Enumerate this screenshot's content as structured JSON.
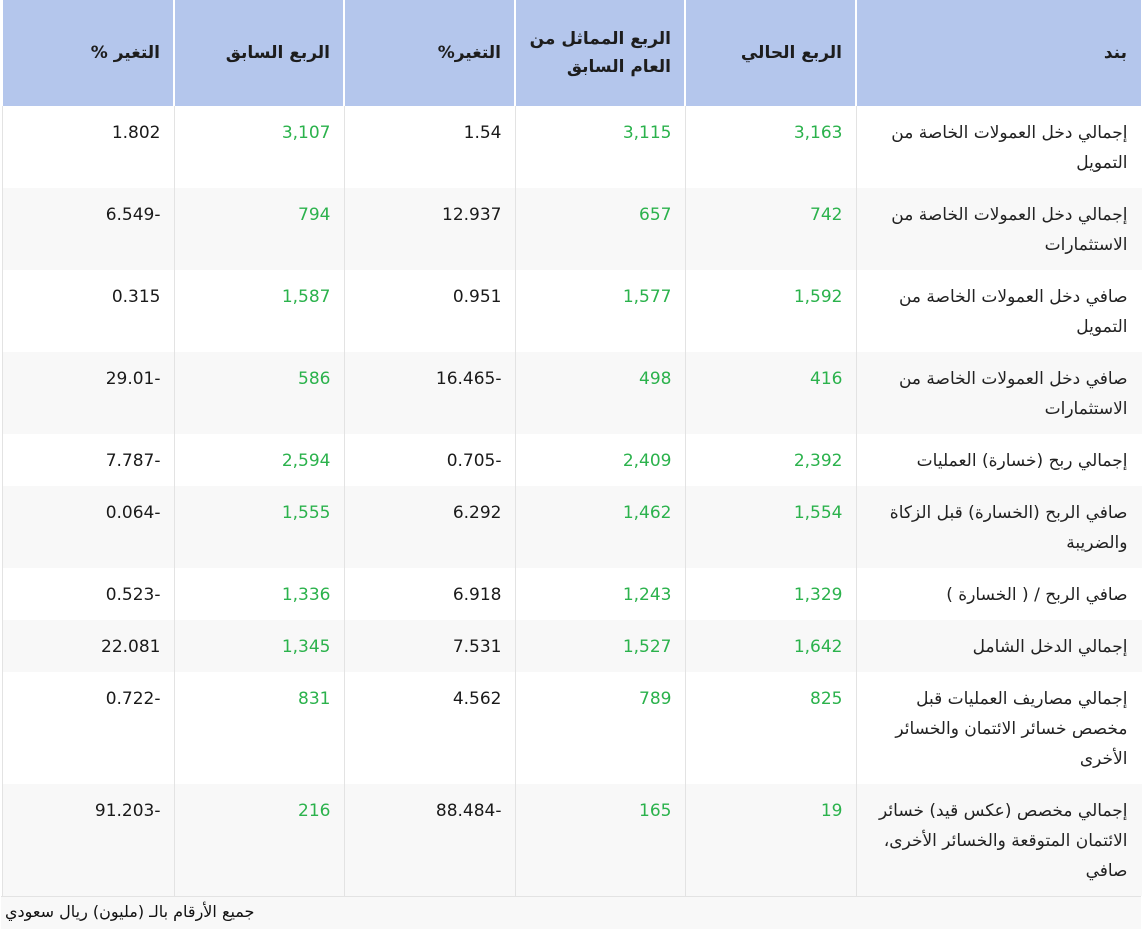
{
  "headers": {
    "item": "بند",
    "current_quarter": "الربع الحالي",
    "same_quarter_last_year": "الربع المماثل من العام السابق",
    "change_pct": "التغير%",
    "previous_quarter": "الربع السابق",
    "change_pct_2": "التغير %"
  },
  "rows": [
    {
      "label": "إجمالي دخل العمولات الخاصة من التمويل",
      "current": "3,163",
      "same_last_year": "3,115",
      "change": "1.54",
      "previous": "3,107",
      "change2": "1.802"
    },
    {
      "label": "إجمالي دخل العمولات الخاصة من الاستثمارات",
      "current": "742",
      "same_last_year": "657",
      "change": "12.937",
      "previous": "794",
      "change2": "6.549-"
    },
    {
      "label": "صافي دخل العمولات الخاصة من التمويل",
      "current": "1,592",
      "same_last_year": "1,577",
      "change": "0.951",
      "previous": "1,587",
      "change2": "0.315"
    },
    {
      "label": "صافي دخل العمولات الخاصة من الاستثمارات",
      "current": "416",
      "same_last_year": "498",
      "change": "16.465-",
      "previous": "586",
      "change2": "29.01-"
    },
    {
      "label": "إجمالي ربح (خسارة) العمليات",
      "current": "2,392",
      "same_last_year": "2,409",
      "change": "0.705-",
      "previous": "2,594",
      "change2": "7.787-"
    },
    {
      "label": "صافي الربح (الخسارة) قبل الزكاة والضريبة",
      "current": "1,554",
      "same_last_year": "1,462",
      "change": "6.292",
      "previous": "1,555",
      "change2": "0.064-"
    },
    {
      "label": "صافي الربح / ( الخسارة )",
      "current": "1,329",
      "same_last_year": "1,243",
      "change": "6.918",
      "previous": "1,336",
      "change2": "0.523-"
    },
    {
      "label": "إجمالي الدخل الشامل",
      "current": "1,642",
      "same_last_year": "1,527",
      "change": "7.531",
      "previous": "1,345",
      "change2": "22.081"
    },
    {
      "label": "إجمالي مصاريف العمليات قبل مخصص خسائر الائتمان والخسائر الأخرى",
      "current": "825",
      "same_last_year": "789",
      "change": "4.562",
      "previous": "831",
      "change2": "0.722-"
    },
    {
      "label": "إجمالي مخصص (عكس قيد) خسائر الائتمان المتوقعة والخسائر الأخرى، صافي",
      "current": "19",
      "same_last_year": "165",
      "change": "88.484-",
      "previous": "216",
      "change2": "91.203-"
    }
  ],
  "footer": "جميع الأرقام بالـ (مليون) ريال سعودي",
  "colors": {
    "header_bg": "#b4c6ec",
    "value_green": "#2bb24c",
    "shade_row": "#f8f8f8"
  }
}
